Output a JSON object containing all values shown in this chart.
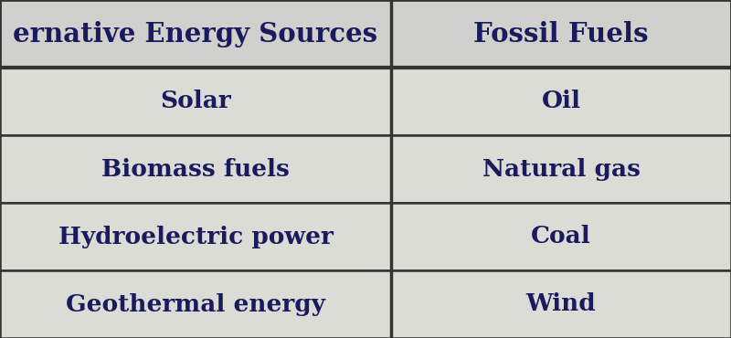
{
  "col1_header": "ernative Energy Sources",
  "col2_header": "Fossil Fuels",
  "col1_rows": [
    "Solar",
    "Biomass fuels",
    "Hydroelectric power",
    "Geothermal energy"
  ],
  "col2_rows": [
    "Oil",
    "Natural gas",
    "Coal",
    "Wind"
  ],
  "header_bg": "#d0d0cc",
  "row_bg": "#dcdcd6",
  "text_color": "#1a1a5e",
  "border_color": "#333333",
  "font_size_header": 21,
  "font_size_body": 19,
  "fig_width": 8.0,
  "fig_height": 3.7,
  "col_split": 0.535
}
